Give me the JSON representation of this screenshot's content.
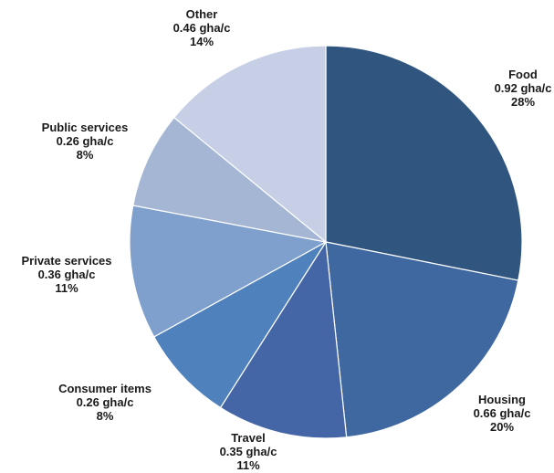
{
  "chart_data": {
    "type": "pie",
    "start_angle_deg": 0,
    "direction": "clockwise",
    "slices": [
      {
        "label": "Food",
        "value": 0.92,
        "unit": "gha/c",
        "percent": "28%",
        "color": "#305680"
      },
      {
        "label": "Housing",
        "value": 0.66,
        "unit": "gha/c",
        "percent": "20%",
        "color": "#3f67a0"
      },
      {
        "label": "Travel",
        "value": 0.35,
        "unit": "gha/c",
        "percent": "11%",
        "color": "#4466a6"
      },
      {
        "label": "Consumer items",
        "value": 0.26,
        "unit": "gha/c",
        "percent": "8%",
        "color": "#4f81bd"
      },
      {
        "label": "Private services",
        "value": 0.36,
        "unit": "gha/c",
        "percent": "11%",
        "color": "#7f9fcd"
      },
      {
        "label": "Public services",
        "value": 0.26,
        "unit": "gha/c",
        "percent": "8%",
        "color": "#a4b6d4"
      },
      {
        "label": "Other",
        "value": 0.46,
        "unit": "gha/c",
        "percent": "14%",
        "color": "#c6cfe6"
      }
    ]
  }
}
